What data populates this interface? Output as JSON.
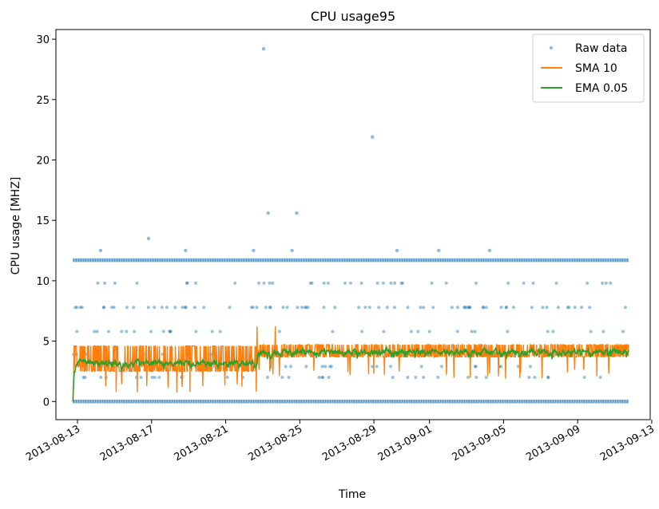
{
  "chart_data": {
    "type": "line",
    "title": "CPU usage95",
    "xlabel": "Time",
    "ylabel": "CPU usage [MHZ]",
    "x_ticks": [
      "2013-08-13",
      "2013-08-17",
      "2013-08-21",
      "2013-08-25",
      "2013-08-29",
      "2013-09-01",
      "2013-09-05",
      "2013-09-09",
      "2013-09-13"
    ],
    "x_range": [
      "2012-08-11T20:00",
      "2013-09-12T22:00"
    ],
    "y_ticks": [
      0,
      5,
      10,
      15,
      20,
      25,
      30
    ],
    "ylim": [
      -1.5,
      30.8
    ],
    "data_range": [
      "2013-08-12T18:00",
      "2013-09-11T18:00"
    ],
    "legend_position": "top-right",
    "grid": false,
    "series": [
      {
        "name": "Raw data",
        "style": "points",
        "color": "#1f77b4",
        "levels": [
          0,
          11.7
        ],
        "sparse_levels": [
          2.0,
          2.9,
          3.9,
          5.8,
          7.8,
          9.8,
          12.5,
          13.5,
          15.6,
          21.9,
          29.2
        ],
        "outliers": [
          {
            "x": "2013-08-23T01:00",
            "y": 29.2
          },
          {
            "x": "2013-08-28T22:00",
            "y": 21.9
          },
          {
            "x": "2013-08-23T07:00",
            "y": 15.6
          },
          {
            "x": "2013-08-24T20:00",
            "y": 15.6
          },
          {
            "x": "2013-08-16T20:00",
            "y": 13.5
          },
          {
            "x": "2013-08-14T06:00",
            "y": 12.5
          },
          {
            "x": "2013-08-18T20:00",
            "y": 12.5
          },
          {
            "x": "2013-08-22T12:00",
            "y": 12.5
          },
          {
            "x": "2013-08-24T14:00",
            "y": 12.5
          },
          {
            "x": "2013-08-30T06:00",
            "y": 12.5
          },
          {
            "x": "2013-09-01T12:00",
            "y": 12.5
          },
          {
            "x": "2013-09-04T06:00",
            "y": 12.5
          }
        ]
      },
      {
        "name": "SMA 10",
        "style": "line",
        "color": "#ff7f0e",
        "segments": [
          {
            "x_start": "2013-08-12T18:00",
            "x_end": "2013-08-22T15:00",
            "typical_range": [
              2.3,
              4.6
            ],
            "mean": 3.1
          },
          {
            "x_start": "2013-08-22T16:00",
            "x_end": "2013-09-11T18:00",
            "typical_range": [
              3.5,
              4.7
            ],
            "mean": 4.0
          }
        ],
        "max": 6.5
      },
      {
        "name": "EMA 0.05",
        "style": "line",
        "color": "#2ca02c",
        "segments": [
          {
            "x_start": "2013-08-12T18:00",
            "x_end": "2013-08-22T15:00",
            "typical_range": [
              2.8,
              3.6
            ],
            "mean": 3.2
          },
          {
            "x_start": "2013-08-22T16:00",
            "x_end": "2013-09-11T18:00",
            "typical_range": [
              3.6,
              4.6
            ],
            "mean": 4.1
          }
        ]
      }
    ]
  }
}
